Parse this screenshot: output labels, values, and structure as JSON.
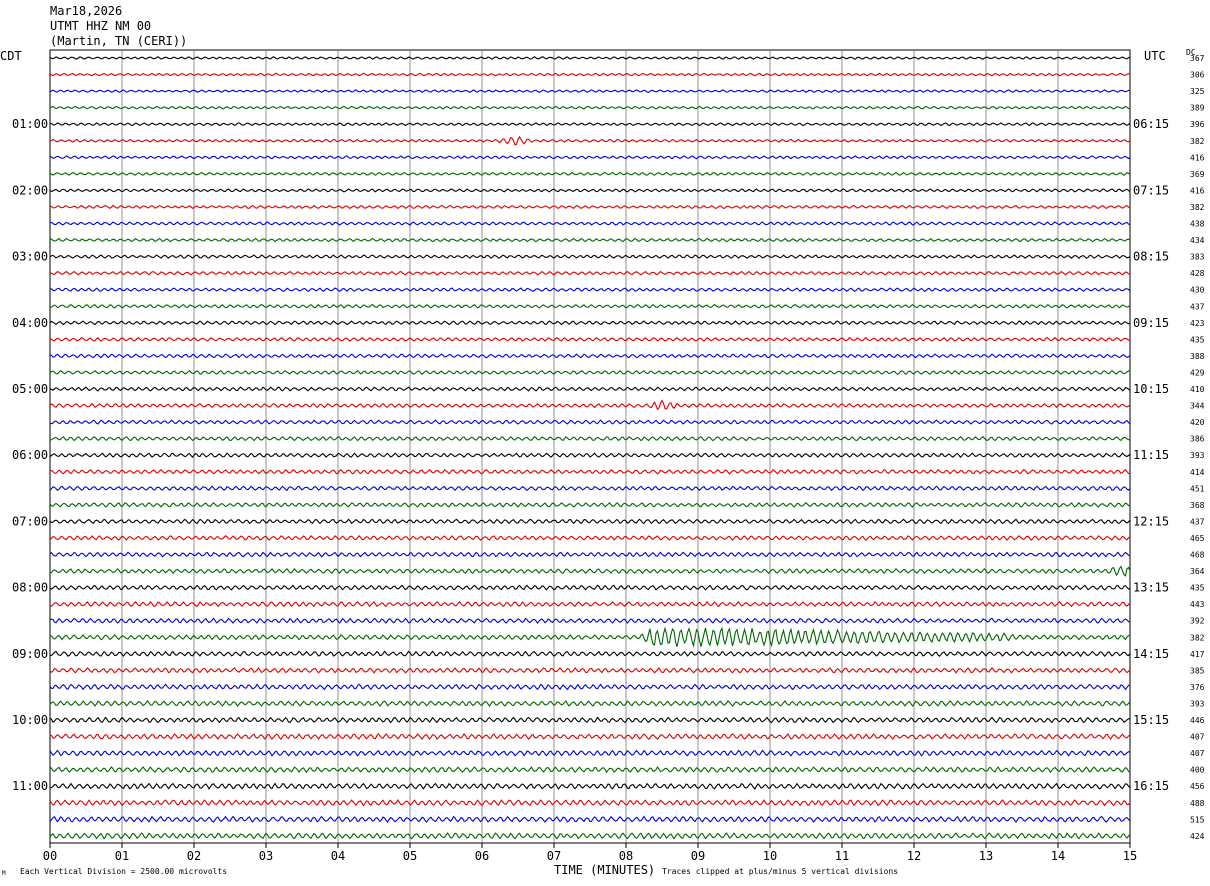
{
  "header": {
    "date": "Mar18,2026",
    "station": "UTMT HHZ NM 00",
    "location": "(Martin, TN (CERI))"
  },
  "left_timezone": "CDT",
  "right_timezone": "UTC",
  "dc_label": "DC",
  "footer": {
    "scale_note": "Each Vertical Division = 2500.00 microvolts",
    "clip_note": "Traces clipped at plus/minus 5 vertical divisions",
    "corner_mark": "M"
  },
  "chart_data": {
    "type": "line",
    "xlabel": "TIME (MINUTES)",
    "xlim": [
      0,
      15
    ],
    "x_ticks": [
      "00",
      "01",
      "02",
      "03",
      "04",
      "05",
      "06",
      "07",
      "08",
      "09",
      "10",
      "11",
      "12",
      "13",
      "14",
      "15"
    ],
    "trace_count": 48,
    "trace_colors": [
      "#000000",
      "#dd0000",
      "#0000dd",
      "#006600"
    ],
    "left_hour_labels": [
      "01:00",
      "02:00",
      "03:00",
      "04:00",
      "05:00",
      "06:00",
      "07:00",
      "08:00",
      "09:00",
      "10:00",
      "11:00"
    ],
    "right_hour_labels": [
      "06:15",
      "07:15",
      "08:15",
      "09:15",
      "10:15",
      "11:15",
      "12:15",
      "13:15",
      "14:15",
      "15:15",
      "16:15"
    ],
    "dc_offsets": [
      367,
      306,
      325,
      389,
      396,
      382,
      416,
      369,
      416,
      382,
      438,
      434,
      383,
      428,
      430,
      437,
      423,
      435,
      388,
      429,
      410,
      344,
      420,
      386,
      393,
      414,
      451,
      368,
      437,
      465,
      468,
      364,
      435,
      443,
      392,
      382,
      417,
      385,
      376,
      393,
      446,
      407,
      407,
      400,
      456,
      488,
      515,
      424
    ],
    "events": [
      {
        "trace": 5,
        "x_minutes": 6.45,
        "amplitude": "small"
      },
      {
        "trace": 21,
        "x_minutes": 8.5,
        "amplitude": "small"
      },
      {
        "trace": 31,
        "x_minutes": 14.9,
        "amplitude": "small"
      },
      {
        "trace": 35,
        "x_minutes": 8.4,
        "amplitude": "large",
        "duration_minutes": 5.0
      }
    ]
  }
}
